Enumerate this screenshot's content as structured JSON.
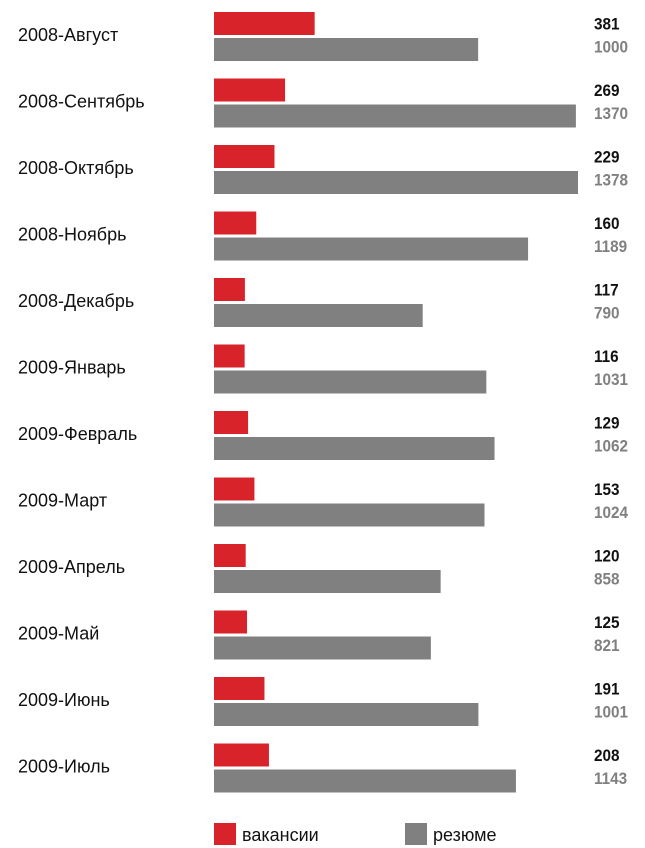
{
  "chart_data": {
    "type": "bar",
    "orientation": "horizontal",
    "categories": [
      "2008-Август",
      "2008-Сентябрь",
      "2008-Октябрь",
      "2008-Ноябрь",
      "2008-Декабрь",
      "2009-Январь",
      "2009-Февраль",
      "2009-Март",
      "2009-Апрель",
      "2009-Май",
      "2009-Июнь",
      "2009-Июль"
    ],
    "series": [
      {
        "name": "вакансии",
        "color": "#d8232a",
        "label_color": "#111111",
        "values": [
          381,
          269,
          229,
          160,
          117,
          116,
          129,
          153,
          120,
          125,
          191,
          208
        ]
      },
      {
        "name": "резюме",
        "color": "#808080",
        "label_color": "#808080",
        "values": [
          1000,
          1370,
          1378,
          1189,
          790,
          1031,
          1062,
          1024,
          858,
          821,
          1001,
          1143
        ]
      }
    ]
  }
}
